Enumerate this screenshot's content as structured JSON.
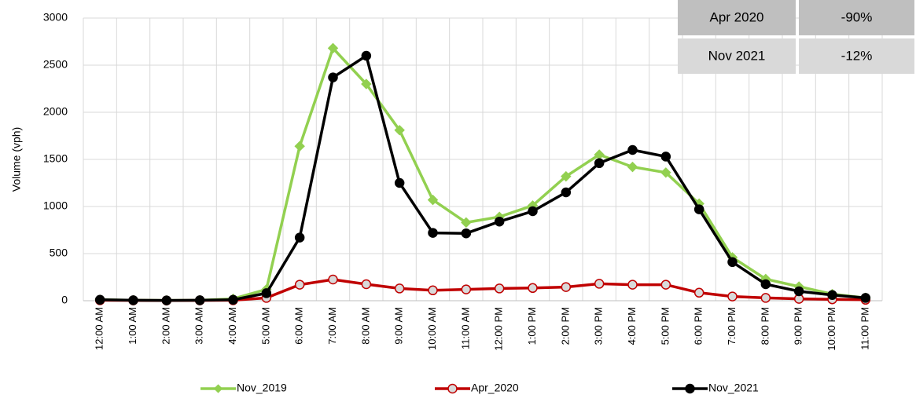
{
  "chart_data": {
    "type": "line",
    "y_label": "Volume (vph)",
    "categories": [
      "12:00 AM",
      "1:00 AM",
      "2:00 AM",
      "3:00 AM",
      "4:00 AM",
      "5:00 AM",
      "6:00 AM",
      "7:00 AM",
      "8:00 AM",
      "9:00 AM",
      "10:00 AM",
      "11:00 AM",
      "12:00 PM",
      "1:00 PM",
      "2:00 PM",
      "3:00 PM",
      "4:00 PM",
      "5:00 PM",
      "6:00 PM",
      "7:00 PM",
      "8:00 PM",
      "9:00 PM",
      "10:00 PM",
      "11:00 PM"
    ],
    "series": [
      {
        "name": "Nov_2019",
        "color": "#92d050",
        "marker_fill": "#92d050",
        "values": [
          10,
          5,
          3,
          5,
          20,
          120,
          1640,
          2680,
          2300,
          1810,
          1070,
          830,
          890,
          1010,
          1320,
          1550,
          1420,
          1360,
          1030,
          460,
          230,
          150,
          70,
          30
        ]
      },
      {
        "name": "Apr_2020",
        "color": "#c00000",
        "marker_fill": "#d9d9d9",
        "values": [
          5,
          3,
          2,
          3,
          5,
          30,
          170,
          225,
          175,
          130,
          110,
          120,
          130,
          135,
          145,
          180,
          170,
          170,
          85,
          45,
          30,
          20,
          15,
          10
        ]
      },
      {
        "name": "Nov_2021",
        "color": "#000000",
        "marker_fill": "#000000",
        "values": [
          10,
          5,
          3,
          5,
          10,
          80,
          670,
          2370,
          2600,
          1250,
          720,
          715,
          840,
          950,
          1150,
          1460,
          1600,
          1530,
          970,
          410,
          175,
          100,
          60,
          30
        ]
      }
    ],
    "ylim": [
      0,
      3000
    ],
    "yticks": [
      0,
      500,
      1000,
      1500,
      2000,
      2500,
      3000
    ],
    "grid": true,
    "legend": "bottom",
    "table": {
      "rows": [
        [
          "Apr 2020",
          "-90%"
        ],
        [
          "Nov 2021",
          "-12%"
        ]
      ]
    }
  }
}
